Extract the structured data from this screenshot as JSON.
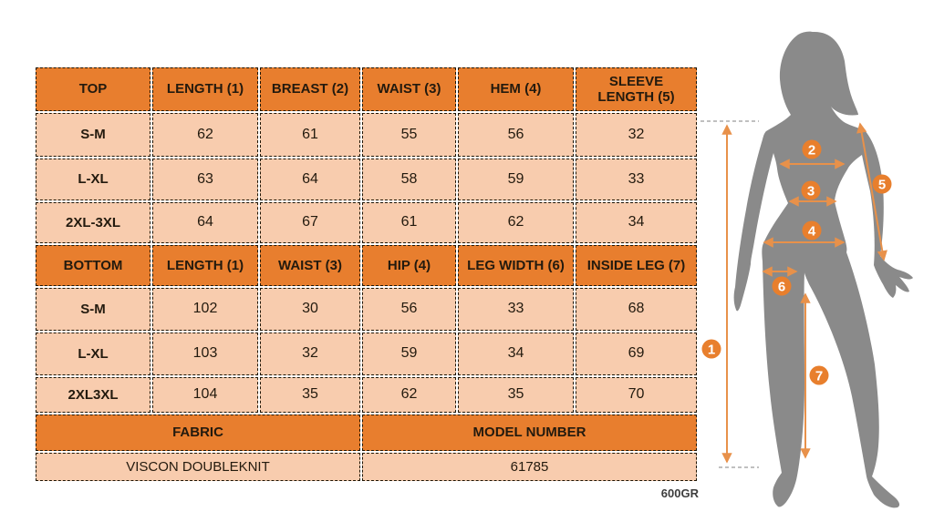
{
  "colors": {
    "header_bg": "#E87E2E",
    "cell_bg": "#F8CCAE",
    "accent_circle": "#E87F2D",
    "arrow": "#E8914A",
    "silhouette": "#8A8A8A"
  },
  "top_table": {
    "headers": [
      "TOP",
      "LENGTH (1)",
      "BREAST (2)",
      "WAIST (3)",
      "HEM (4)",
      "SLEEVE LENGTH (5)"
    ],
    "rows": [
      {
        "size": "S-M",
        "values": [
          "62",
          "61",
          "55",
          "56",
          "32"
        ]
      },
      {
        "size": "L-XL",
        "values": [
          "63",
          "64",
          "58",
          "59",
          "33"
        ]
      },
      {
        "size": "2XL-3XL",
        "values": [
          "64",
          "67",
          "61",
          "62",
          "34"
        ]
      }
    ]
  },
  "bottom_table": {
    "headers": [
      "BOTTOM",
      "LENGTH (1)",
      "WAIST (3)",
      "HIP (4)",
      "LEG WIDTH (6)",
      "INSIDE LEG (7)"
    ],
    "rows": [
      {
        "size": "S-M",
        "values": [
          "102",
          "30",
          "56",
          "33",
          "68"
        ]
      },
      {
        "size": "L-XL",
        "values": [
          "103",
          "32",
          "59",
          "34",
          "69"
        ]
      },
      {
        "size": "2XL3XL",
        "values": [
          "104",
          "35",
          "62",
          "35",
          "70"
        ]
      }
    ]
  },
  "info": {
    "fabric_label": "FABRIC",
    "fabric_value": "VISCON DOUBLEKNIT",
    "model_label": "MODEL NUMBER",
    "model_value": "61785"
  },
  "weight_note": "600GR",
  "figure": {
    "markers": [
      "1",
      "2",
      "3",
      "4",
      "5",
      "6",
      "7"
    ]
  }
}
